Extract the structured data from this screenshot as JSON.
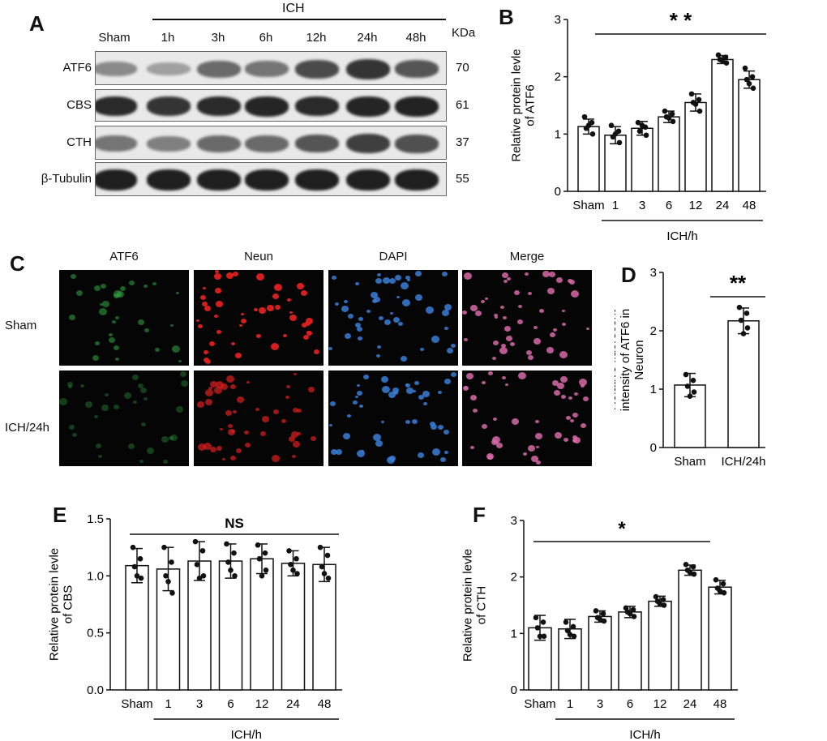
{
  "panel_letters": [
    "A",
    "B",
    "C",
    "D",
    "E",
    "F"
  ],
  "panel_a": {
    "group_header": "ICH",
    "lanes": [
      "Sham",
      "1h",
      "3h",
      "6h",
      "12h",
      "24h",
      "48h"
    ],
    "kda_header": "KDa",
    "proteins": [
      {
        "name": "ATF6",
        "kda": "70",
        "intensity": [
          0.45,
          0.35,
          0.6,
          0.55,
          0.75,
          0.85,
          0.7
        ]
      },
      {
        "name": "CBS",
        "kda": "61",
        "intensity": [
          0.9,
          0.85,
          0.9,
          0.92,
          0.9,
          0.92,
          0.93
        ]
      },
      {
        "name": "CTH",
        "kda": "37",
        "intensity": [
          0.55,
          0.5,
          0.6,
          0.6,
          0.7,
          0.8,
          0.72
        ]
      },
      {
        "name": "β-Tubulin",
        "kda": "55",
        "intensity": [
          0.95,
          0.95,
          0.95,
          0.95,
          0.95,
          0.95,
          0.95
        ]
      }
    ]
  },
  "panel_c": {
    "channels": [
      "ATF6",
      "Neun",
      "DAPI",
      "Merge"
    ],
    "rows": [
      "Sham",
      "ICH/24h"
    ],
    "channel_colors": [
      "#33aa44",
      "#e02020",
      "#3a7fd8",
      "#d86aa8"
    ]
  },
  "chart_data": [
    {
      "id": "B",
      "type": "bar",
      "categories": [
        "Sham",
        "1",
        "3",
        "6",
        "12",
        "24",
        "48"
      ],
      "values": [
        1.13,
        0.98,
        1.1,
        1.3,
        1.55,
        2.3,
        1.95
      ],
      "errors": [
        0.13,
        0.15,
        0.12,
        0.1,
        0.15,
        0.07,
        0.15
      ],
      "points": [
        [
          1.3,
          1.2,
          1.1,
          1.0,
          1.15
        ],
        [
          1.15,
          1.05,
          0.95,
          0.85,
          1.0
        ],
        [
          1.2,
          1.12,
          1.05,
          0.98,
          1.15
        ],
        [
          1.4,
          1.35,
          1.3,
          1.22,
          1.28
        ],
        [
          1.7,
          1.6,
          1.55,
          1.4,
          1.52
        ],
        [
          2.38,
          2.34,
          2.3,
          2.24,
          2.28
        ],
        [
          2.15,
          2.0,
          1.95,
          1.8,
          1.88
        ]
      ],
      "ylabel": "Relative protein levle\nof ATF6",
      "xlabel": "ICH/h",
      "ylim": [
        0,
        3
      ],
      "yticks": [
        0,
        1,
        2,
        3
      ],
      "significance": "* *"
    },
    {
      "id": "D",
      "type": "bar",
      "categories": [
        "Sham",
        "ICH/24h"
      ],
      "values": [
        1.07,
        2.17
      ],
      "errors": [
        0.2,
        0.22
      ],
      "points": [
        [
          1.25,
          1.15,
          1.05,
          0.95,
          0.88
        ],
        [
          2.4,
          2.3,
          2.18,
          2.05,
          1.95
        ]
      ],
      "ylabel": "Relative fluorecent\nintensity of ATF6 in\nNeuron",
      "xlabel": "",
      "ylim": [
        0,
        3
      ],
      "yticks": [
        0,
        1,
        2,
        3
      ],
      "significance": "**"
    },
    {
      "id": "E",
      "type": "bar",
      "categories": [
        "Sham",
        "1",
        "3",
        "6",
        "12",
        "24",
        "48"
      ],
      "values": [
        1.09,
        1.06,
        1.13,
        1.13,
        1.15,
        1.11,
        1.1
      ],
      "errors": [
        0.15,
        0.19,
        0.17,
        0.15,
        0.13,
        0.11,
        0.15
      ],
      "points": [
        [
          1.25,
          1.15,
          1.08,
          0.98,
          1.0
        ],
        [
          1.25,
          1.12,
          1.0,
          0.85,
          0.95
        ],
        [
          1.3,
          1.22,
          1.1,
          1.0,
          0.98
        ],
        [
          1.28,
          1.2,
          1.12,
          1.0,
          1.05
        ],
        [
          1.27,
          1.2,
          1.15,
          1.05,
          1.0
        ],
        [
          1.22,
          1.15,
          1.1,
          1.02,
          1.05
        ],
        [
          1.25,
          1.18,
          1.08,
          0.98,
          1.02
        ]
      ],
      "ylabel": "Relative protein levle\nof CBS",
      "xlabel": "ICH/h",
      "ylim": [
        0,
        1.5
      ],
      "yticks": [
        0.0,
        0.5,
        1.0,
        1.5
      ],
      "significance": "NS"
    },
    {
      "id": "F",
      "type": "bar",
      "categories": [
        "Sham",
        "1",
        "3",
        "6",
        "12",
        "24",
        "48"
      ],
      "values": [
        1.1,
        1.08,
        1.3,
        1.38,
        1.57,
        2.12,
        1.82
      ],
      "errors": [
        0.22,
        0.17,
        0.1,
        0.1,
        0.09,
        0.09,
        0.12
      ],
      "points": [
        [
          1.28,
          1.2,
          1.1,
          0.95,
          0.95
        ],
        [
          1.2,
          1.12,
          1.05,
          0.95,
          0.98
        ],
        [
          1.4,
          1.35,
          1.28,
          1.22,
          1.25
        ],
        [
          1.45,
          1.42,
          1.38,
          1.3,
          1.35
        ],
        [
          1.65,
          1.6,
          1.57,
          1.5,
          1.52
        ],
        [
          2.22,
          2.18,
          2.12,
          2.05,
          2.08
        ],
        [
          1.95,
          1.88,
          1.8,
          1.72,
          1.75
        ]
      ],
      "ylabel": "Relative protein levle\nof CTH",
      "xlabel": "ICH/h",
      "ylim": [
        0,
        3
      ],
      "yticks": [
        0,
        1,
        2,
        3
      ],
      "significance": "*"
    }
  ]
}
